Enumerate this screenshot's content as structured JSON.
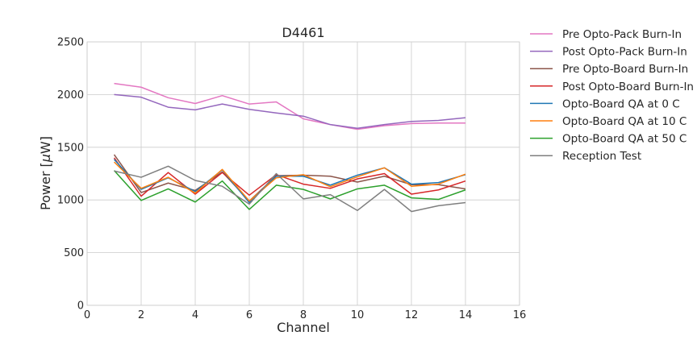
{
  "chart_data": {
    "type": "line",
    "title": "D4461",
    "xlabel": "Channel",
    "ylabel_prefix": "Power [",
    "ylabel_mu": "μ",
    "ylabel_suffix": "W]",
    "xlim": [
      0,
      16
    ],
    "ylim": [
      0,
      2500
    ],
    "xticks": [
      0,
      2,
      4,
      6,
      8,
      10,
      12,
      14,
      16
    ],
    "yticks": [
      0,
      500,
      1000,
      1500,
      2000,
      2500
    ],
    "grid": true,
    "legend_position": "outside-top-right",
    "x": [
      1,
      2,
      3,
      4,
      5,
      6,
      7,
      8,
      9,
      10,
      11,
      12,
      13,
      14
    ],
    "series": [
      {
        "name": "Pre Opto-Pack Burn-In",
        "color": "#e377c2",
        "values": [
          2105,
          2070,
          1970,
          1915,
          1990,
          1910,
          1930,
          1770,
          1715,
          1670,
          1705,
          1725,
          1730,
          1730
        ]
      },
      {
        "name": "Post Opto-Pack Burn-In",
        "color": "#9467bd",
        "values": [
          2000,
          1975,
          1880,
          1855,
          1910,
          1860,
          1825,
          1795,
          1715,
          1680,
          1715,
          1745,
          1755,
          1780
        ]
      },
      {
        "name": "Pre Opto-Board Burn-In",
        "color": "#8c564b",
        "values": [
          1430,
          1070,
          1160,
          1090,
          1265,
          990,
          1230,
          1235,
          1225,
          1170,
          1225,
          1145,
          1145,
          1105
        ]
      },
      {
        "name": "Post Opto-Board Burn-In",
        "color": "#d62728",
        "values": [
          1400,
          1035,
          1260,
          1055,
          1260,
          1045,
          1240,
          1150,
          1110,
          1200,
          1250,
          1055,
          1095,
          1180
        ]
      },
      {
        "name": "Opto-Board QA at 0 C",
        "color": "#1f77b4",
        "values": [
          1385,
          1100,
          1210,
          1080,
          1285,
          975,
          1225,
          1225,
          1140,
          1235,
          1305,
          1150,
          1165,
          1240
        ]
      },
      {
        "name": "Opto-Board QA at 10 C",
        "color": "#ff7f0e",
        "values": [
          1360,
          1110,
          1215,
          1065,
          1290,
          990,
          1210,
          1240,
          1125,
          1220,
          1305,
          1130,
          1150,
          1245
        ]
      },
      {
        "name": "Opto-Board QA at 50 C",
        "color": "#2ca02c",
        "values": [
          1280,
          995,
          1105,
          980,
          1180,
          910,
          1140,
          1100,
          1010,
          1105,
          1140,
          1020,
          1005,
          1095
        ]
      },
      {
        "name": "Reception Test",
        "color": "#7f7f7f",
        "values": [
          1275,
          1215,
          1320,
          1185,
          1130,
          960,
          1250,
          1010,
          1050,
          900,
          1100,
          890,
          945,
          975
        ]
      }
    ]
  }
}
